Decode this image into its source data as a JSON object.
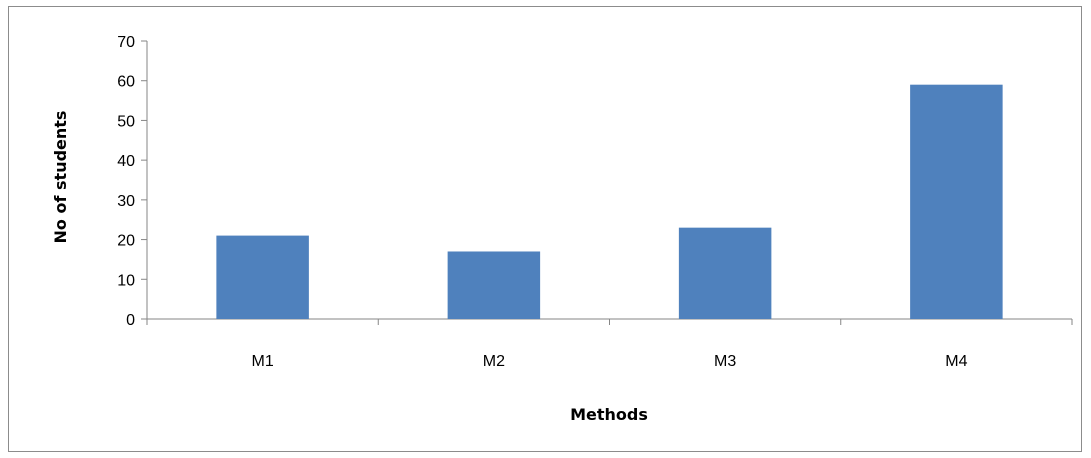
{
  "chart_data": {
    "type": "bar",
    "categories": [
      "M1",
      "M2",
      "M3",
      "M4"
    ],
    "values": [
      21,
      17,
      23,
      59
    ],
    "title": "",
    "xlabel": "Methods",
    "ylabel": "No of students",
    "ylim": [
      0,
      70
    ],
    "yticks": [
      0,
      10,
      20,
      30,
      40,
      50,
      60,
      70
    ],
    "grid": false,
    "legend": "none",
    "bar_color": "#4f81bd",
    "axis_color": "#868686"
  }
}
